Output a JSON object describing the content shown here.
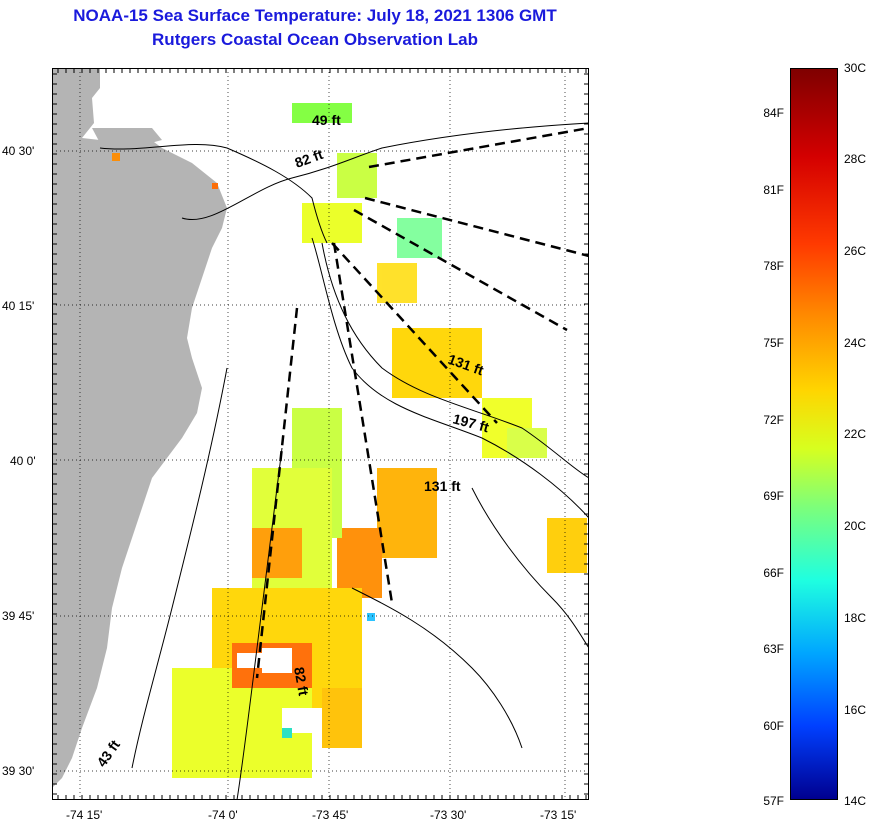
{
  "header": {
    "title": "NOAA-15 Sea Surface Temperature:  July 18, 2021 1306 GMT",
    "subtitle": "Rutgers Coastal Ocean Observation Lab"
  },
  "axes": {
    "y_ticks": [
      "40 30'",
      "40 15'",
      "40 0'",
      "39 45'",
      "39 30'"
    ],
    "x_ticks": [
      "-74 15'",
      "-74 0'",
      "-73 45'",
      "-73 30'",
      "-73 15'"
    ]
  },
  "map": {
    "depth_labels": [
      "49 ft",
      "82 ft",
      "131 ft",
      "197 ft",
      "131 ft",
      "82 ft",
      "43 ft"
    ],
    "land_color": "#b4b4b4"
  },
  "colorbar": {
    "fahrenheit_labels": [
      "84F",
      "81F",
      "78F",
      "75F",
      "72F",
      "69F",
      "66F",
      "63F",
      "60F",
      "57F"
    ],
    "celsius_labels": [
      "30C",
      "28C",
      "26C",
      "24C",
      "22C",
      "20C",
      "18C",
      "16C",
      "14C"
    ],
    "gradient_colors": [
      "#7f0000",
      "#ff3a00",
      "#ffd500",
      "#7dff7a",
      "#1fffe0",
      "#0040ff",
      "#00008f"
    ]
  }
}
